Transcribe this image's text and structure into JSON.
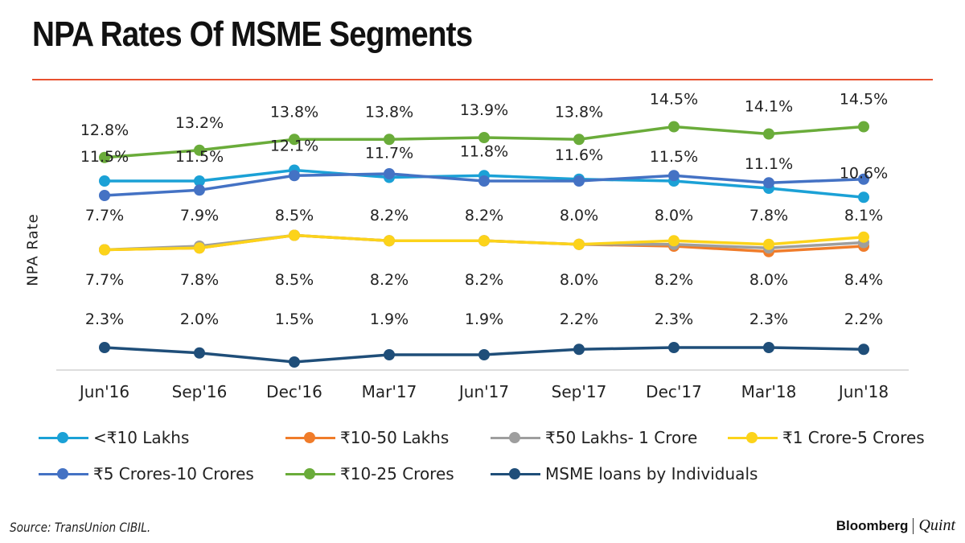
{
  "title": "NPA Rates Of MSME Segments",
  "source": "Source: TransUnion CIBIL.",
  "brand": {
    "left": "Bloomberg",
    "right": "Quint"
  },
  "accent_color": "#e8502f",
  "chart_data": {
    "type": "line",
    "title": "NPA Rates Of MSME Segments",
    "xlabel": "",
    "ylabel": "NPA Rate",
    "grid": false,
    "legend_position": "bottom",
    "categories": [
      "Jun'16",
      "Sep'16",
      "Dec'16",
      "Mar'17",
      "Jun'17",
      "Sep'17",
      "Dec'17",
      "Mar'18",
      "Jun'18"
    ],
    "series": [
      {
        "name": "<₹10 Lakhs",
        "color": "#1ba1d6",
        "values": [
          11.5,
          11.5,
          12.1,
          11.7,
          11.8,
          11.6,
          11.5,
          11.1,
          10.6
        ],
        "labels": [
          "11.5%",
          "11.5%",
          "12.1%",
          "11.7%",
          "11.8%",
          "11.6%",
          "11.5%",
          "11.1%",
          "10.6%"
        ]
      },
      {
        "name": "₹10-50 Lakhs",
        "color": "#f07c2a",
        "values": [
          7.7,
          7.8,
          8.5,
          8.2,
          8.2,
          8.0,
          7.9,
          7.6,
          7.9
        ],
        "labels": []
      },
      {
        "name": "₹50 Lakhs- 1 Crore",
        "color": "#9e9e9e",
        "values": [
          7.7,
          7.9,
          8.5,
          8.2,
          8.2,
          8.0,
          8.0,
          7.8,
          8.1
        ],
        "labels": [
          "7.7%",
          "7.9%",
          "8.5%",
          "8.2%",
          "8.2%",
          "8.0%",
          "8.0%",
          "7.8%",
          "8.1%"
        ]
      },
      {
        "name": "₹1 Crore-5  Crores",
        "color": "#fcd31a",
        "values": [
          7.7,
          7.8,
          8.5,
          8.2,
          8.2,
          8.0,
          8.2,
          8.0,
          8.4
        ],
        "labels": [
          "7.7%",
          "7.8%",
          "8.5%",
          "8.2%",
          "8.2%",
          "8.0%",
          "8.2%",
          "8.0%",
          "8.4%"
        ]
      },
      {
        "name": "₹5 Crores-10 Crores",
        "color": "#4472c4",
        "values": [
          10.7,
          11.0,
          11.8,
          11.9,
          11.5,
          11.5,
          11.8,
          11.4,
          11.6
        ],
        "labels": []
      },
      {
        "name": "₹10-25 Crores",
        "color": "#6aac3a",
        "values": [
          12.8,
          13.2,
          13.8,
          13.8,
          13.9,
          13.8,
          14.5,
          14.1,
          14.5
        ],
        "labels": [
          "12.8%",
          "13.2%",
          "13.8%",
          "13.8%",
          "13.9%",
          "13.8%",
          "14.5%",
          "14.1%",
          "14.5%"
        ]
      },
      {
        "name": "MSME loans by Individuals",
        "color": "#1f4e79",
        "values": [
          2.3,
          2.0,
          1.5,
          1.9,
          1.9,
          2.2,
          2.3,
          2.3,
          2.2
        ],
        "labels": [
          "2.3%",
          "2.0%",
          "1.5%",
          "1.9%",
          "1.9%",
          "2.2%",
          "2.3%",
          "2.3%",
          "2.2%"
        ]
      }
    ]
  }
}
